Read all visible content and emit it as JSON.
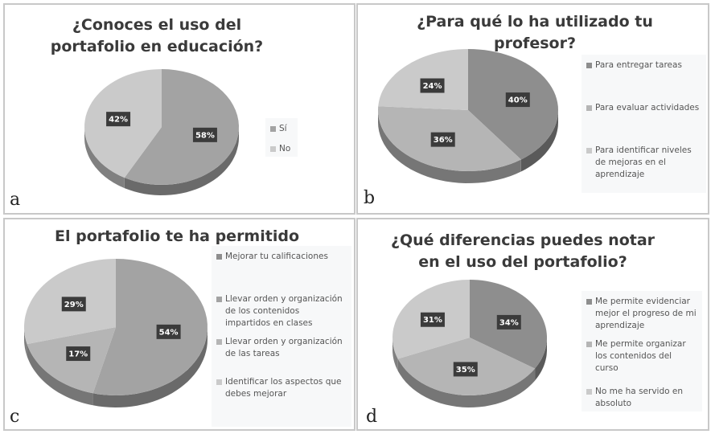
{
  "colors": {
    "slice": [
      "#8e8e8e",
      "#a3a3a3",
      "#b5b5b5",
      "#cacaca"
    ],
    "side": [
      "#5a5a5a",
      "#6a6a6a",
      "#767676",
      "#808080"
    ],
    "label_bg": "#3b3b3b"
  },
  "chart_data": [
    {
      "type": "pie",
      "panel_letter": "a",
      "title": "¿Conoces el uso del portafolio en educación?",
      "categories": [
        "Sí",
        "No"
      ],
      "values": [
        58,
        42
      ],
      "labels": [
        "58%",
        "42%"
      ],
      "color_index": [
        1,
        3
      ],
      "legend": "right"
    },
    {
      "type": "pie",
      "panel_letter": "b",
      "title": "¿Para qué lo ha utilizado tu profesor?",
      "categories": [
        "Para entregar tareas",
        "Para evaluar actividades",
        "Para identificar niveles de mejoras en el aprendizaje"
      ],
      "values": [
        40,
        36,
        24
      ],
      "labels": [
        "40%",
        "36%",
        "24%"
      ],
      "color_index": [
        0,
        2,
        3
      ],
      "legend": "right"
    },
    {
      "type": "pie",
      "panel_letter": "c",
      "title": "El portafolio te ha permitido",
      "categories": [
        "Mejorar tu calificaciones",
        "Llevar orden y organización de los contenidos impartidos en clases",
        "Llevar orden y organización de las tareas",
        "Identificar los aspectos que debes mejorar"
      ],
      "values": [
        0,
        54,
        17,
        29
      ],
      "labels": [
        "",
        "54%",
        "17%",
        "29%"
      ],
      "color_index": [
        0,
        1,
        2,
        3
      ],
      "legend": "right"
    },
    {
      "type": "pie",
      "panel_letter": "d",
      "title": "¿Qué diferencias puedes notar en el uso del portafolio?",
      "categories": [
        "Me permite evidenciar mejor el progreso de mi aprendizaje",
        "Me permite organizar los contenidos del curso",
        "No me ha servido en absoluto"
      ],
      "values": [
        34,
        35,
        31
      ],
      "labels": [
        "34%",
        "35%",
        "31%"
      ],
      "color_index": [
        0,
        2,
        3
      ],
      "legend": "right"
    }
  ]
}
